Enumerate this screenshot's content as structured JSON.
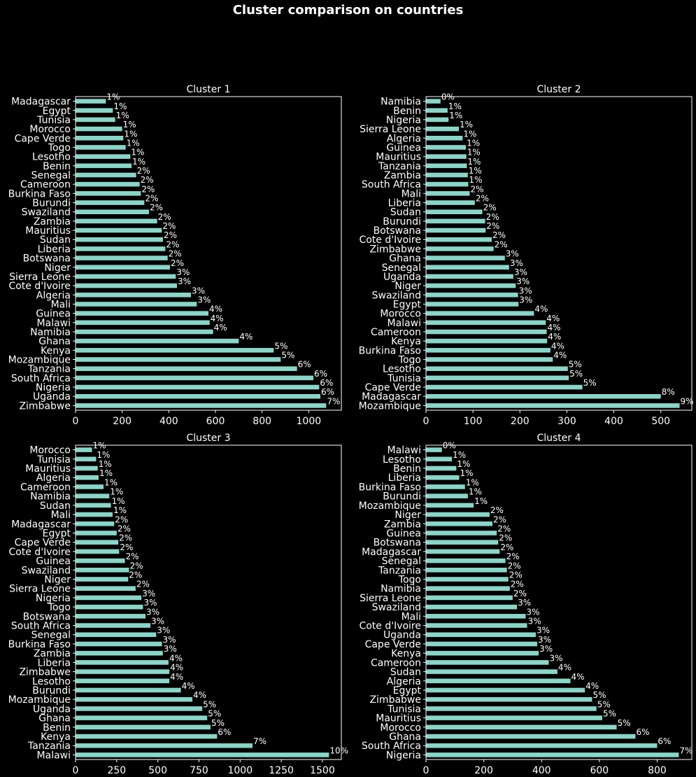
{
  "title": "Cluster comparison on countries",
  "colors": {
    "background": "#000000",
    "bar": "#8dd3c7",
    "text": "#ffffff"
  },
  "chart_data": [
    {
      "type": "bar",
      "orientation": "horizontal",
      "title": "Cluster 1",
      "xlim": [
        0,
        1140
      ],
      "xticks": [
        0,
        200,
        400,
        600,
        800,
        1000
      ],
      "categories": [
        "Zimbabwe",
        "Uganda",
        "Nigeria",
        "South Africa",
        "Tanzania",
        "Mozambique",
        "Kenya",
        "Ghana",
        "Namibia",
        "Malawi",
        "Guinea",
        "Mali",
        "Algeria",
        "Cote d'Ivoire",
        "Sierra Leone",
        "Niger",
        "Botswana",
        "Liberia",
        "Sudan",
        "Mauritius",
        "Zambia",
        "Swaziland",
        "Burundi",
        "Burkina Faso",
        "Cameroon",
        "Senegal",
        "Benin",
        "Lesotho",
        "Togo",
        "Cape Verde",
        "Morocco",
        "Tunisia",
        "Egypt",
        "Madagascar"
      ],
      "values": [
        1075,
        1050,
        1045,
        1020,
        950,
        880,
        850,
        700,
        590,
        575,
        570,
        520,
        495,
        435,
        430,
        405,
        395,
        385,
        375,
        370,
        350,
        315,
        295,
        280,
        275,
        260,
        240,
        235,
        215,
        205,
        200,
        170,
        160,
        130
      ],
      "labels": [
        "7%",
        "6%",
        "6%",
        "6%",
        "6%",
        "5%",
        "5%",
        "4%",
        "4%",
        "4%",
        "4%",
        "3%",
        "3%",
        "3%",
        "3%",
        "2%",
        "2%",
        "2%",
        "2%",
        "2%",
        "2%",
        "2%",
        "2%",
        "2%",
        "2%",
        "2%",
        "1%",
        "1%",
        "1%",
        "1%",
        "1%",
        "1%",
        "1%",
        "1%"
      ]
    },
    {
      "type": "bar",
      "orientation": "horizontal",
      "title": "Cluster 2",
      "xlim": [
        0,
        566
      ],
      "xticks": [
        0,
        100,
        200,
        300,
        400,
        500
      ],
      "categories": [
        "Mozambique",
        "Madagascar",
        "Cape Verde",
        "Tunisia",
        "Lesotho",
        "Togo",
        "Burkina Faso",
        "Kenya",
        "Cameroon",
        "Malawi",
        "Morocco",
        "Egypt",
        "Swaziland",
        "Niger",
        "Uganda",
        "Senegal",
        "Ghana",
        "Zimbabwe",
        "Cote d'Ivoire",
        "Botswana",
        "Burundi",
        "Sudan",
        "Liberia",
        "Mali",
        "South Africa",
        "Zambia",
        "Tanzania",
        "Mauritius",
        "Guinea",
        "Algeria",
        "Sierra Leone",
        "Nigeria",
        "Benin",
        "Namibia"
      ],
      "values": [
        540,
        500,
        333,
        304,
        302,
        270,
        265,
        258,
        257,
        255,
        230,
        197,
        196,
        191,
        186,
        177,
        168,
        144,
        140,
        127,
        126,
        120,
        104,
        93,
        90,
        89,
        87,
        86,
        85,
        78,
        70,
        48,
        46,
        31
      ],
      "labels": [
        "9%",
        "8%",
        "5%",
        "5%",
        "5%",
        "4%",
        "4%",
        "4%",
        "4%",
        "4%",
        "4%",
        "3%",
        "3%",
        "3%",
        "3%",
        "3%",
        "3%",
        "2%",
        "2%",
        "2%",
        "2%",
        "2%",
        "2%",
        "2%",
        "1%",
        "1%",
        "1%",
        "1%",
        "1%",
        "1%",
        "1%",
        "1%",
        "1%",
        "0%"
      ]
    },
    {
      "type": "bar",
      "orientation": "horizontal",
      "title": "Cluster 3",
      "xlim": [
        0,
        1615
      ],
      "xticks": [
        0,
        250,
        500,
        750,
        1000,
        1250,
        1500
      ],
      "categories": [
        "Malawi",
        "Tanzania",
        "Kenya",
        "Benin",
        "Ghana",
        "Uganda",
        "Mozambique",
        "Burundi",
        "Lesotho",
        "Zimbabwe",
        "Liberia",
        "Zambia",
        "Burkina Faso",
        "Senegal",
        "South Africa",
        "Botswana",
        "Togo",
        "Nigeria",
        "Sierra Leone",
        "Niger",
        "Swaziland",
        "Guinea",
        "Cote d'Ivoire",
        "Cape Verde",
        "Egypt",
        "Madagascar",
        "Mali",
        "Sudan",
        "Namibia",
        "Cameroon",
        "Algeria",
        "Mauritius",
        "Tunisia",
        "Morocco"
      ],
      "values": [
        1540,
        1075,
        860,
        820,
        800,
        770,
        710,
        640,
        570,
        570,
        565,
        530,
        525,
        490,
        455,
        425,
        410,
        400,
        365,
        320,
        325,
        300,
        265,
        260,
        250,
        235,
        225,
        215,
        205,
        170,
        140,
        135,
        125,
        100
      ],
      "labels": [
        "10%",
        "7%",
        "6%",
        "5%",
        "5%",
        "5%",
        "4%",
        "4%",
        "4%",
        "4%",
        "4%",
        "3%",
        "3%",
        "3%",
        "3%",
        "3%",
        "3%",
        "3%",
        "2%",
        "2%",
        "2%",
        "2%",
        "2%",
        "2%",
        "2%",
        "2%",
        "1%",
        "1%",
        "1%",
        "1%",
        "1%",
        "1%",
        "1%",
        "1%"
      ]
    },
    {
      "type": "bar",
      "orientation": "horizontal",
      "title": "Cluster 4",
      "xlim": [
        0,
        920
      ],
      "xticks": [
        0,
        200,
        400,
        600,
        800
      ],
      "categories": [
        "Nigeria",
        "South Africa",
        "Ghana",
        "Morocco",
        "Mauritius",
        "Tunisia",
        "Zimbabwe",
        "Egypt",
        "Algeria",
        "Sudan",
        "Cameroon",
        "Kenya",
        "Cape Verde",
        "Uganda",
        "Cote d'Ivoire",
        "Mali",
        "Swaziland",
        "Sierra Leone",
        "Namibia",
        "Togo",
        "Tanzania",
        "Senegal",
        "Madagascar",
        "Botswana",
        "Guinea",
        "Zambia",
        "Niger",
        "Mozambique",
        "Burundi",
        "Burkina Faso",
        "Liberia",
        "Benin",
        "Lesotho",
        "Malawi"
      ],
      "values": [
        875,
        800,
        725,
        660,
        610,
        590,
        575,
        550,
        500,
        455,
        425,
        390,
        385,
        380,
        350,
        345,
        315,
        300,
        290,
        285,
        280,
        275,
        255,
        250,
        245,
        230,
        220,
        165,
        145,
        135,
        115,
        105,
        90,
        55
      ],
      "labels": [
        "7%",
        "6%",
        "6%",
        "5%",
        "5%",
        "5%",
        "5%",
        "4%",
        "4%",
        "4%",
        "3%",
        "3%",
        "3%",
        "3%",
        "3%",
        "3%",
        "3%",
        "2%",
        "2%",
        "2%",
        "2%",
        "2%",
        "2%",
        "2%",
        "2%",
        "2%",
        "2%",
        "1%",
        "1%",
        "1%",
        "1%",
        "1%",
        "1%",
        "0%"
      ]
    }
  ]
}
